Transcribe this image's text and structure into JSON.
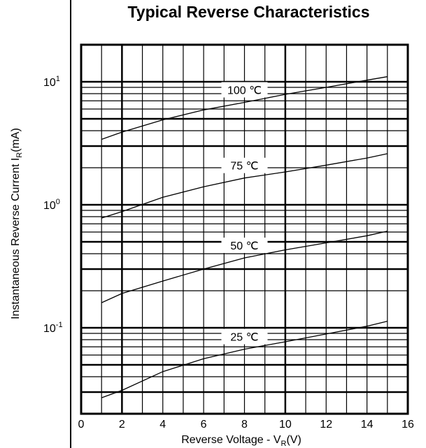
{
  "chart_data": {
    "type": "line",
    "title": "Typical Reverse Characteristics",
    "xlabel": "Reverse Voltage - V",
    "xlabel_sub": "R",
    "xlabel_unit": "(V)",
    "ylabel": "Instantaneous Reverse Current",
    "ylabel_sub": "R",
    "ylabel_unit": "(mA)",
    "xlim": [
      0,
      16
    ],
    "ylim": [
      0.02,
      20
    ],
    "y_scale": "log",
    "grid": true,
    "x_ticks": [
      0,
      2,
      4,
      6,
      8,
      10,
      12,
      14,
      16
    ],
    "y_ticks": [
      {
        "value": 0.1,
        "base": "10",
        "exp": "-1"
      },
      {
        "value": 1,
        "base": "10",
        "exp": "0"
      },
      {
        "value": 10,
        "base": "10",
        "exp": "1"
      }
    ],
    "series": [
      {
        "name": "100 ℃",
        "x": [
          1,
          2,
          4,
          6,
          8,
          10,
          12,
          14,
          15
        ],
        "y": [
          3.4,
          3.9,
          4.9,
          5.9,
          6.8,
          7.9,
          9.0,
          10.3,
          11.0
        ]
      },
      {
        "name": "75 ℃",
        "x": [
          1,
          2,
          4,
          6,
          8,
          10,
          12,
          14,
          15
        ],
        "y": [
          0.78,
          0.88,
          1.15,
          1.4,
          1.65,
          1.85,
          2.1,
          2.4,
          2.6
        ]
      },
      {
        "name": "50 ℃",
        "x": [
          1,
          2,
          4,
          6,
          8,
          10,
          12,
          14,
          15
        ],
        "y": [
          0.16,
          0.19,
          0.24,
          0.3,
          0.37,
          0.43,
          0.49,
          0.56,
          0.61
        ]
      },
      {
        "name": "25 ℃",
        "x": [
          1,
          2,
          4,
          6,
          8,
          10,
          12,
          14,
          15
        ],
        "y": [
          0.027,
          0.031,
          0.044,
          0.056,
          0.067,
          0.077,
          0.089,
          0.103,
          0.113
        ]
      }
    ]
  }
}
